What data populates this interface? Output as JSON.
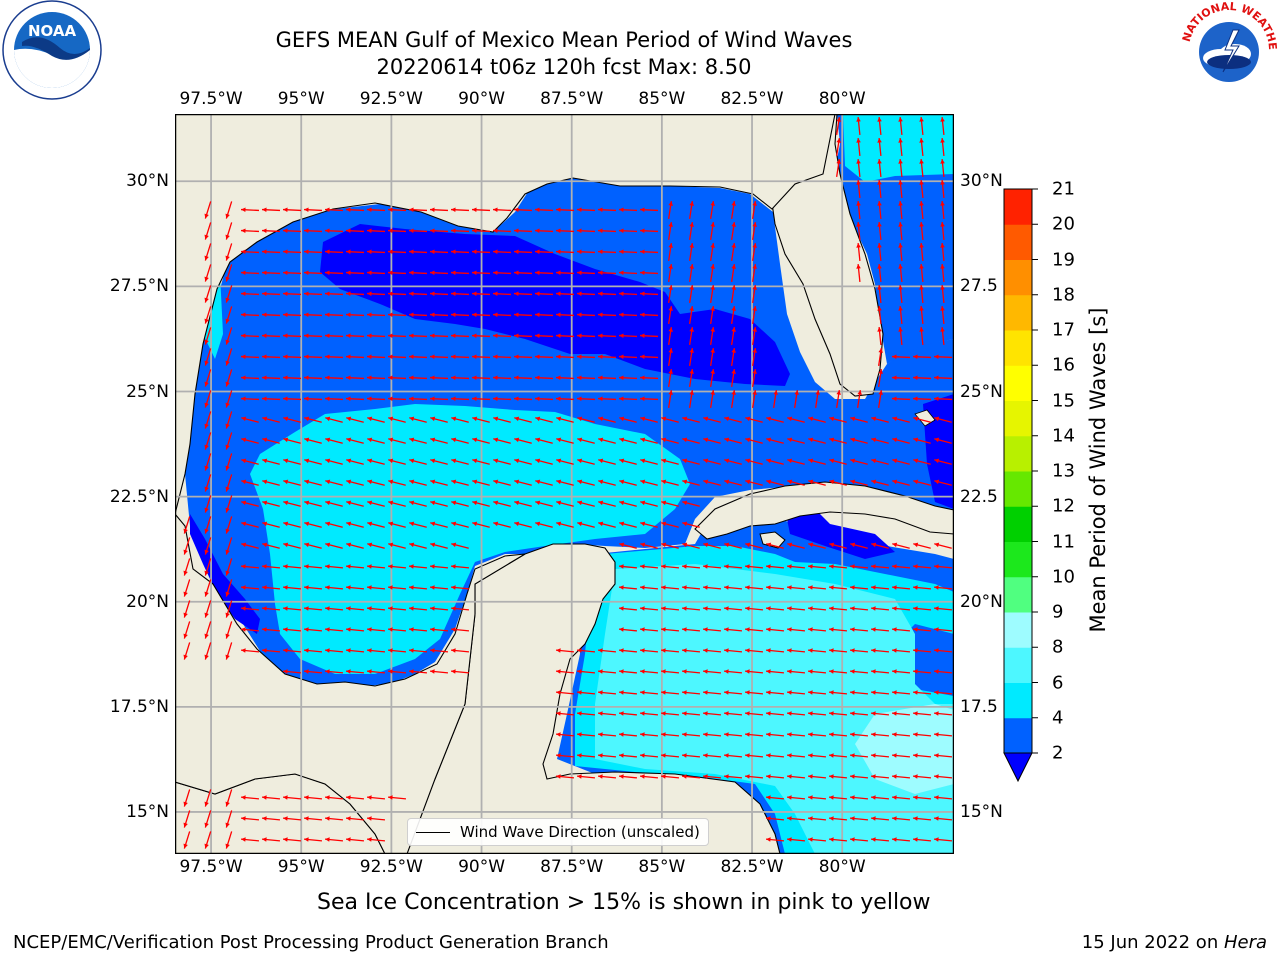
{
  "header": {
    "title_line1": "GEFS MEAN Gulf of Mexico Mean Period of Wind Waves",
    "title_line2": "20220614 t06z 120h fcst   Max: 8.50"
  },
  "logos": {
    "left": {
      "name": "noaa-logo",
      "text": "NOAA",
      "ring": "NATIONAL OCEANIC AND ATMOSPHERIC ADMINISTRATION · U.S. DEPARTMENT OF COMMERCE"
    },
    "right": {
      "name": "nws-logo",
      "ring": "NATIONAL WEATHER SERVICE"
    }
  },
  "map": {
    "lon_range": [
      -98.5,
      -76.9
    ],
    "lat_range": [
      14.0,
      31.6
    ],
    "lon_ticks": [
      "97.5°W",
      "95°W",
      "92.5°W",
      "90°W",
      "87.5°W",
      "85°W",
      "82.5°W",
      "80°W"
    ],
    "lat_ticks_left": [
      "30°N",
      "27.5°N",
      "25°N",
      "22.5°N",
      "20°N",
      "17.5°N",
      "15°N"
    ],
    "lat_ticks_right": [
      "30°N",
      "27.5",
      "25°N",
      "22.5",
      "20°N",
      "17.5",
      "15°N"
    ],
    "land_color": "#efedde",
    "arrow_color": "#ff0000",
    "grid_color": "#b0b0b0",
    "legend_label": "Wind Wave Direction (unscaled)"
  },
  "colorbar": {
    "label": "Mean Period of Wind Waves [s]",
    "ticks": [
      "2",
      "4",
      "6",
      "8",
      "9",
      "10",
      "11",
      "12",
      "13",
      "14",
      "15",
      "16",
      "17",
      "18",
      "19",
      "20",
      "21"
    ],
    "colors": [
      "#0061ff",
      "#00eaff",
      "#4df7ff",
      "#9efcff",
      "#50ff80",
      "#1ce81c",
      "#00d000",
      "#66e800",
      "#b8f000",
      "#e6f500",
      "#ffff00",
      "#ffe400",
      "#ffb800",
      "#ff8f00",
      "#ff5a00",
      "#ff2200"
    ],
    "extend_color": "#0000ff"
  },
  "caption": "Sea Ice Concentration > 15% is shown in pink to yellow",
  "footer": {
    "left": "NCEP/EMC/Verification Post Processing Product Generation Branch",
    "right_date": "15 Jun 2022 on ",
    "right_host": "Hera"
  }
}
